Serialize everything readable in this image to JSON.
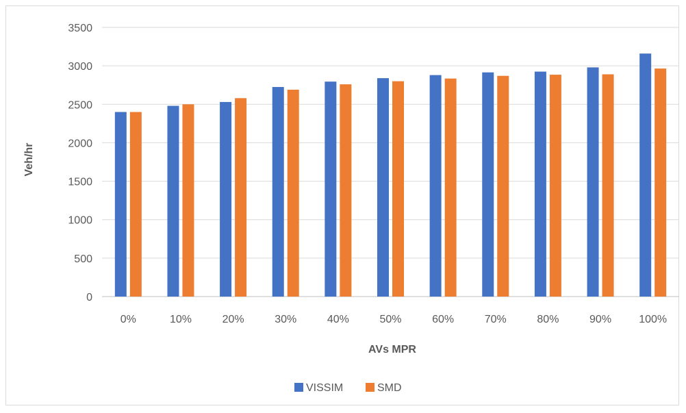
{
  "chart_data": {
    "type": "bar",
    "title": "",
    "xlabel": "AVs MPR",
    "ylabel": "Veh/hr",
    "categories": [
      "0%",
      "10%",
      "20%",
      "30%",
      "40%",
      "50%",
      "60%",
      "70%",
      "80%",
      "90%",
      "100%"
    ],
    "series": [
      {
        "name": "VISSIM",
        "color": "#4472C4",
        "values": [
          2400,
          2480,
          2530,
          2725,
          2795,
          2840,
          2880,
          2915,
          2925,
          2980,
          3160
        ]
      },
      {
        "name": "SMD",
        "color": "#ED7D31",
        "values": [
          2400,
          2500,
          2580,
          2690,
          2760,
          2800,
          2835,
          2870,
          2885,
          2890,
          2965
        ]
      }
    ],
    "ylim": [
      0,
      3500
    ],
    "yticks": [
      "0",
      "500",
      "1000",
      "1500",
      "2000",
      "2500",
      "3000",
      "3500"
    ],
    "ytick_values": [
      0,
      500,
      1000,
      1500,
      2000,
      2500,
      3000,
      3500
    ],
    "grid": true,
    "legend_position": "bottom"
  }
}
